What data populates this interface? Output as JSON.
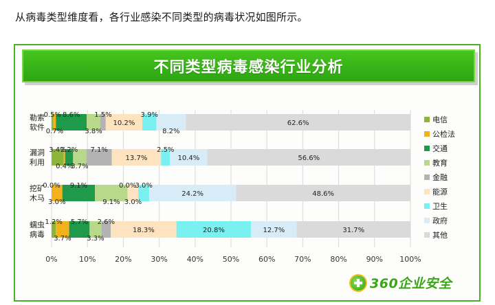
{
  "intro_text": "从病毒类型维度看，各行业感染不同类型的病毒状况如图所示。",
  "logo_text": "360企业安全",
  "chart_data": {
    "type": "bar",
    "orientation": "horizontal",
    "stacked": true,
    "title": "不同类型病毒感染行业分析",
    "categories": [
      "勒索软件",
      "漏洞利用",
      "挖矿木马",
      "蠕虫病毒"
    ],
    "category_lines": [
      [
        "勒索",
        "软件"
      ],
      [
        "漏洞",
        "利用"
      ],
      [
        "挖矿",
        "木马"
      ],
      [
        "蠕虫",
        "病毒"
      ]
    ],
    "xlim": [
      0,
      100
    ],
    "x_ticks": [
      "0%",
      "10%",
      "20%",
      "30%",
      "40%",
      "50%",
      "60%",
      "70%",
      "80%",
      "90%",
      "100%"
    ],
    "grid": true,
    "legend_position": "right",
    "series": [
      {
        "name": "电信",
        "color": "#8db53a",
        "values": [
          0.5,
          3.4,
          0.0,
          1.2
        ],
        "labels": [
          "0.5%",
          "3.4%",
          "0.0%",
          "1.2%"
        ]
      },
      {
        "name": "公检法",
        "color": "#f3b21b",
        "values": [
          0.7,
          0.4,
          3.0,
          3.7
        ],
        "labels": [
          "0.7%",
          "0.4%",
          "3.0%",
          "3.7%"
        ]
      },
      {
        "name": "交通",
        "color": "#1f9a4a",
        "values": [
          8.6,
          2.2,
          9.1,
          5.7
        ],
        "labels": [
          "8.6%",
          "2.2%",
          "9.1%",
          "5.7%"
        ]
      },
      {
        "name": "教育",
        "color": "#b9d98a",
        "values": [
          3.8,
          3.7,
          9.1,
          3.3
        ],
        "labels": [
          "3.8%",
          "3.7%",
          "9.1%",
          "3.3%"
        ]
      },
      {
        "name": "金融",
        "color": "#b3b3b3",
        "values": [
          1.5,
          7.1,
          0.0,
          2.6
        ],
        "labels": [
          "1.5%",
          "7.1%",
          "0.0%",
          "2.6%"
        ]
      },
      {
        "name": "能源",
        "color": "#fde3bf",
        "values": [
          10.2,
          13.7,
          3.0,
          18.3
        ],
        "labels": [
          "10.2%",
          "13.7%",
          "3.0%",
          "18.3%"
        ]
      },
      {
        "name": "卫生",
        "color": "#7af0f0",
        "values": [
          3.9,
          2.5,
          3.0,
          20.8
        ],
        "labels": [
          "3.9%",
          "2.5%",
          "3.0%",
          "20.8%"
        ]
      },
      {
        "name": "政府",
        "color": "#d8ecf7",
        "values": [
          8.2,
          10.4,
          24.2,
          12.7
        ],
        "labels": [
          "8.2%",
          "10.4%",
          "24.2%",
          "12.7%"
        ]
      },
      {
        "name": "其他",
        "color": "#dadada",
        "values": [
          62.6,
          56.6,
          48.6,
          31.7
        ],
        "labels": [
          "62.6%",
          "56.6%",
          "48.6%",
          "31.7%"
        ]
      }
    ]
  }
}
